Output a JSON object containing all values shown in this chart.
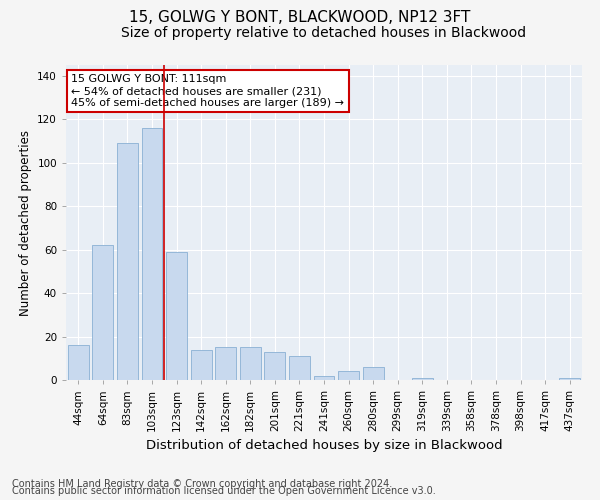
{
  "title": "15, GOLWG Y BONT, BLACKWOOD, NP12 3FT",
  "subtitle": "Size of property relative to detached houses in Blackwood",
  "xlabel": "Distribution of detached houses by size in Blackwood",
  "ylabel": "Number of detached properties",
  "categories": [
    "44sqm",
    "64sqm",
    "83sqm",
    "103sqm",
    "123sqm",
    "142sqm",
    "162sqm",
    "182sqm",
    "201sqm",
    "221sqm",
    "241sqm",
    "260sqm",
    "280sqm",
    "299sqm",
    "319sqm",
    "339sqm",
    "358sqm",
    "378sqm",
    "398sqm",
    "417sqm",
    "437sqm"
  ],
  "values": [
    16,
    62,
    109,
    116,
    59,
    14,
    15,
    15,
    13,
    11,
    2,
    4,
    6,
    0,
    1,
    0,
    0,
    0,
    0,
    0,
    1
  ],
  "bar_color": "#c8d9ee",
  "bar_edge_color": "#8ab0d4",
  "highlight_bar_index": 3,
  "highlight_line_color": "#cc0000",
  "annotation_text": "15 GOLWG Y BONT: 111sqm\n← 54% of detached houses are smaller (231)\n45% of semi-detached houses are larger (189) →",
  "annotation_box_facecolor": "#ffffff",
  "annotation_box_edgecolor": "#cc0000",
  "ylim": [
    0,
    145
  ],
  "yticks": [
    0,
    20,
    40,
    60,
    80,
    100,
    120,
    140
  ],
  "fig_facecolor": "#f5f5f5",
  "plot_facecolor": "#e8eef5",
  "grid_color": "#ffffff",
  "title_fontsize": 11,
  "subtitle_fontsize": 10,
  "xlabel_fontsize": 9.5,
  "ylabel_fontsize": 8.5,
  "tick_fontsize": 7.5,
  "annotation_fontsize": 8,
  "footer_fontsize": 7,
  "footer_line1": "Contains HM Land Registry data © Crown copyright and database right 2024.",
  "footer_line2": "Contains public sector information licensed under the Open Government Licence v3.0."
}
